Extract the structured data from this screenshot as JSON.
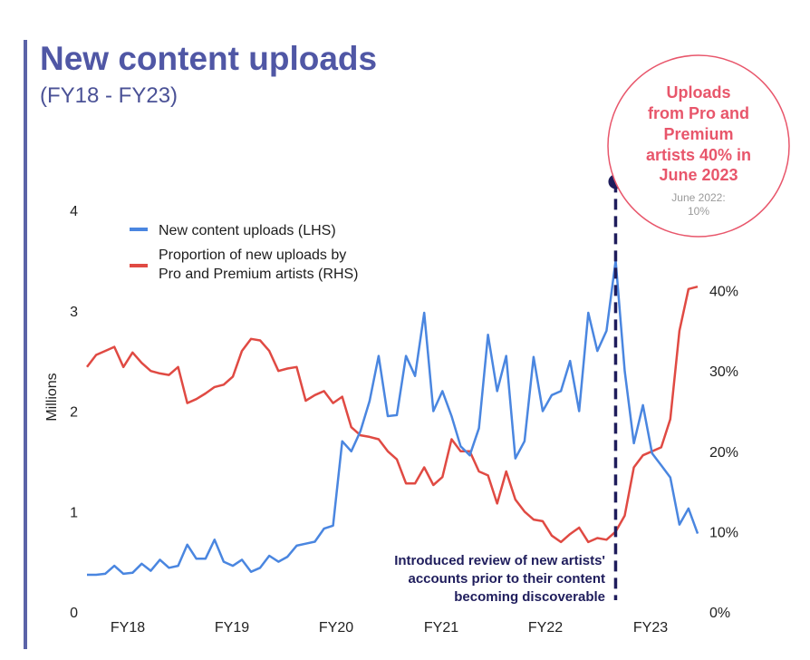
{
  "header": {
    "title": "New content uploads",
    "subtitle": "(FY18 - FY23)"
  },
  "colors": {
    "uploads": "#4a86e0",
    "proportion": "#e04a43",
    "title": "#5057a5",
    "callout": "#e8566b",
    "annotation": "#1f1d5c"
  },
  "callout": {
    "line1": "Uploads",
    "line2": "from Pro and",
    "line3": "Premium",
    "line4_prefix": "artists ",
    "line4_value": "40%",
    "line4_suffix": " in",
    "line5": "June 2023",
    "sub1": "June 2022:",
    "sub2": "10%"
  },
  "annotation": {
    "line1": "Introduced review of new artists'",
    "line2": "accounts prior to their content",
    "line3": "becoming discoverable"
  },
  "chart_data": {
    "type": "line",
    "ylabel": "Millions",
    "ylim": [
      0,
      4
    ],
    "y2lim": [
      0,
      50
    ],
    "left_ticks": [
      "0",
      "1",
      "2",
      "3",
      "4"
    ],
    "right_ticks": [
      "0%",
      "10%",
      "20%",
      "30%",
      "40%"
    ],
    "x_ticks": [
      "FY18",
      "FY19",
      "FY20",
      "FY21",
      "FY22",
      "FY23"
    ],
    "legend": [
      {
        "label_line1": "New content uploads (LHS)",
        "label_line2": ""
      },
      {
        "label_line1": "Proportion of new uploads by",
        "label_line2": "Pro and Premium artists (RHS)"
      }
    ],
    "series": [
      {
        "name": "New content uploads (LHS)",
        "axis": "left",
        "values": [
          0.37,
          0.37,
          0.38,
          0.46,
          0.38,
          0.39,
          0.48,
          0.41,
          0.52,
          0.44,
          0.46,
          0.67,
          0.53,
          0.53,
          0.72,
          0.5,
          0.46,
          0.52,
          0.4,
          0.44,
          0.56,
          0.5,
          0.55,
          0.66,
          0.68,
          0.7,
          0.83,
          0.86,
          1.7,
          1.6,
          1.8,
          2.1,
          2.55,
          1.95,
          1.96,
          2.55,
          2.35,
          2.98,
          2.0,
          2.2,
          1.95,
          1.65,
          1.56,
          1.83,
          2.76,
          2.2,
          2.55,
          1.53,
          1.7,
          2.54,
          2.0,
          2.16,
          2.2,
          2.5,
          2.0,
          2.98,
          2.6,
          2.8,
          3.5,
          2.4,
          1.68,
          2.06,
          1.58,
          1.46,
          1.34,
          0.87,
          1.03,
          0.78
        ]
      },
      {
        "name": "Proportion of new uploads by Pro and Premium artists (RHS)",
        "axis": "right",
        "values": [
          30.5,
          32,
          32.5,
          33,
          30.5,
          32.3,
          31,
          30,
          29.7,
          29.5,
          30.5,
          26,
          26.5,
          27.2,
          28,
          28.3,
          29.3,
          32.5,
          34,
          33.8,
          32.5,
          30,
          30.3,
          30.5,
          26.3,
          27,
          27.5,
          26,
          26.8,
          23,
          22,
          21.8,
          21.5,
          20,
          19,
          16,
          16,
          18,
          15.8,
          16.8,
          21.5,
          20,
          20,
          17.5,
          17,
          13.5,
          17.5,
          14,
          12.5,
          11.5,
          11.3,
          9.5,
          8.7,
          9.7,
          10.5,
          8.7,
          9.2,
          9,
          10,
          12,
          18,
          19.5,
          20,
          20.5,
          24,
          35,
          40.2,
          40.5
        ]
      }
    ],
    "highlight_point": {
      "label": "June 2022",
      "series": 0,
      "index": 58
    }
  }
}
